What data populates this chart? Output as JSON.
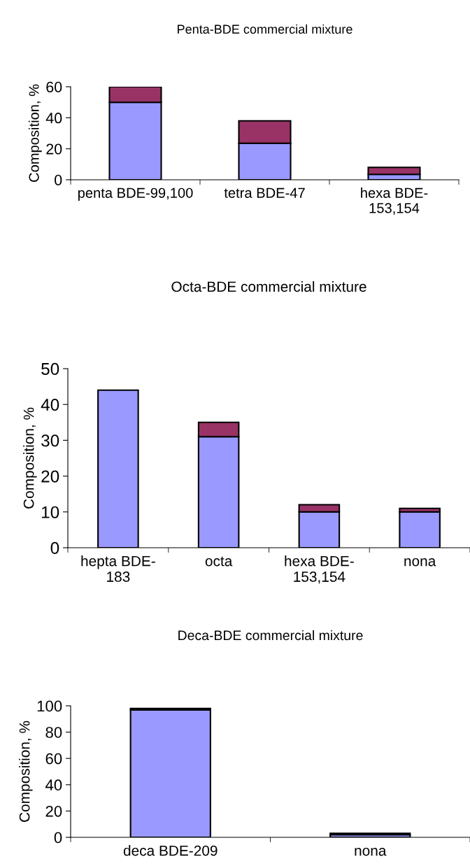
{
  "chart_data": [
    {
      "type": "bar",
      "title": "Penta-BDE commercial mixture",
      "ylabel": "Composition, %",
      "categories": [
        "penta BDE-99,100",
        "tetra BDE-47",
        "hexa BDE-\n153,154"
      ],
      "stacked": true,
      "ylim": [
        0,
        60
      ],
      "yticks": [
        0,
        20,
        40,
        60
      ],
      "series": [
        {
          "color": "#9999ff",
          "values": [
            50,
            23.5,
            3.5
          ]
        },
        {
          "color": "#993366",
          "values": [
            10,
            14.5,
            4.5
          ]
        }
      ]
    },
    {
      "type": "bar",
      "title": "Octa-BDE commercial mixture",
      "ylabel": "Composition, %",
      "categories": [
        "hepta BDE-\n183",
        "octa",
        "hexa BDE-\n153,154",
        "nona"
      ],
      "stacked": true,
      "ylim": [
        0,
        50
      ],
      "yticks": [
        0,
        10,
        20,
        30,
        40,
        50
      ],
      "series": [
        {
          "color": "#9999ff",
          "values": [
            44,
            31,
            10,
            10
          ]
        },
        {
          "color": "#993366",
          "values": [
            0,
            4,
            2,
            1
          ]
        }
      ]
    },
    {
      "type": "bar",
      "title": "Deca-BDE commercial mixture",
      "ylabel": "Composition, %",
      "categories": [
        "deca BDE-209",
        "nona"
      ],
      "stacked": true,
      "ylim": [
        0,
        100
      ],
      "yticks": [
        0,
        20,
        40,
        60,
        80,
        100
      ],
      "series": [
        {
          "color": "#9999ff",
          "values": [
            97,
            2
          ]
        },
        {
          "color": "#993366",
          "values": [
            1,
            1
          ]
        }
      ]
    }
  ]
}
